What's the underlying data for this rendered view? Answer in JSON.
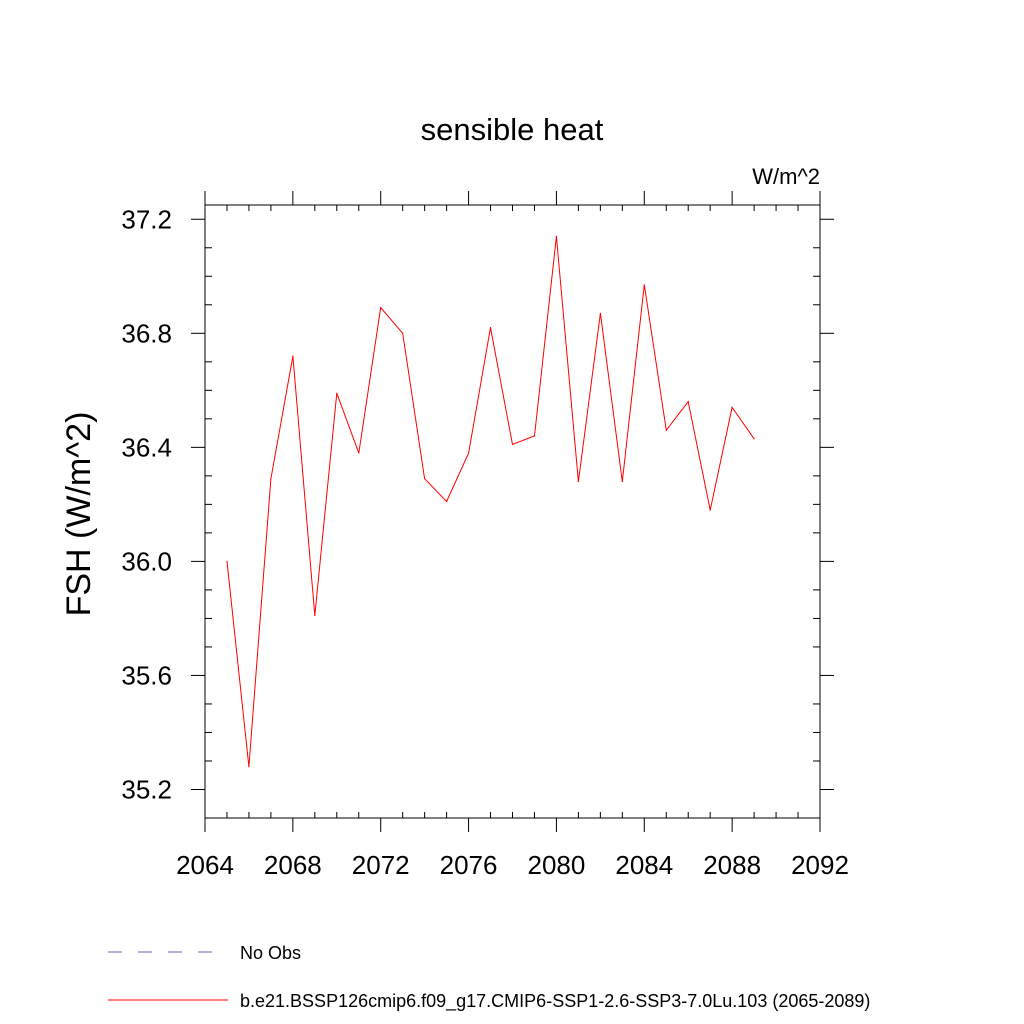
{
  "chart_data": {
    "type": "line",
    "title": "sensible heat",
    "units_label": "W/m^2",
    "ylabel": "FSH  (W/m^2)",
    "xlabel": "",
    "xlim": [
      2064,
      2092
    ],
    "ylim": [
      35.1,
      37.25
    ],
    "x_ticks": [
      2064,
      2068,
      2072,
      2076,
      2080,
      2084,
      2088,
      2092
    ],
    "y_ticks": [
      35.2,
      35.6,
      36.0,
      36.4,
      36.8,
      37.2
    ],
    "x_tick_labels": [
      "2064",
      "2068",
      "2072",
      "2076",
      "2080",
      "2084",
      "2088",
      "2092"
    ],
    "y_tick_labels": [
      "35.2",
      "35.6",
      "36.0",
      "36.4",
      "36.8",
      "37.2"
    ],
    "grid": false,
    "legend_position": "bottom-left",
    "series": [
      {
        "name": "b.e21.BSSP126cmip6.f09_g17.CMIP6-SSP1-2.6-SSP3-7.0Lu.103 (2065-2089)",
        "color": "#ff0000",
        "style": "solid",
        "x": [
          2065,
          2066,
          2067,
          2068,
          2069,
          2070,
          2071,
          2072,
          2073,
          2074,
          2075,
          2076,
          2077,
          2078,
          2079,
          2080,
          2081,
          2082,
          2083,
          2084,
          2085,
          2086,
          2087,
          2088,
          2089
        ],
        "values": [
          36.0,
          35.28,
          36.29,
          36.72,
          35.81,
          36.59,
          36.38,
          36.89,
          36.8,
          36.29,
          36.21,
          36.38,
          36.82,
          36.41,
          36.44,
          37.14,
          36.28,
          36.87,
          36.28,
          36.97,
          36.46,
          36.56,
          36.18,
          36.54,
          36.43
        ]
      }
    ],
    "legend": [
      {
        "label": "No Obs",
        "color": "#6666aa",
        "style": "dashed"
      },
      {
        "label": "b.e21.BSSP126cmip6.f09_g17.CMIP6-SSP1-2.6-SSP3-7.0Lu.103 (2065-2089)",
        "color": "#ff0000",
        "style": "solid"
      }
    ]
  }
}
